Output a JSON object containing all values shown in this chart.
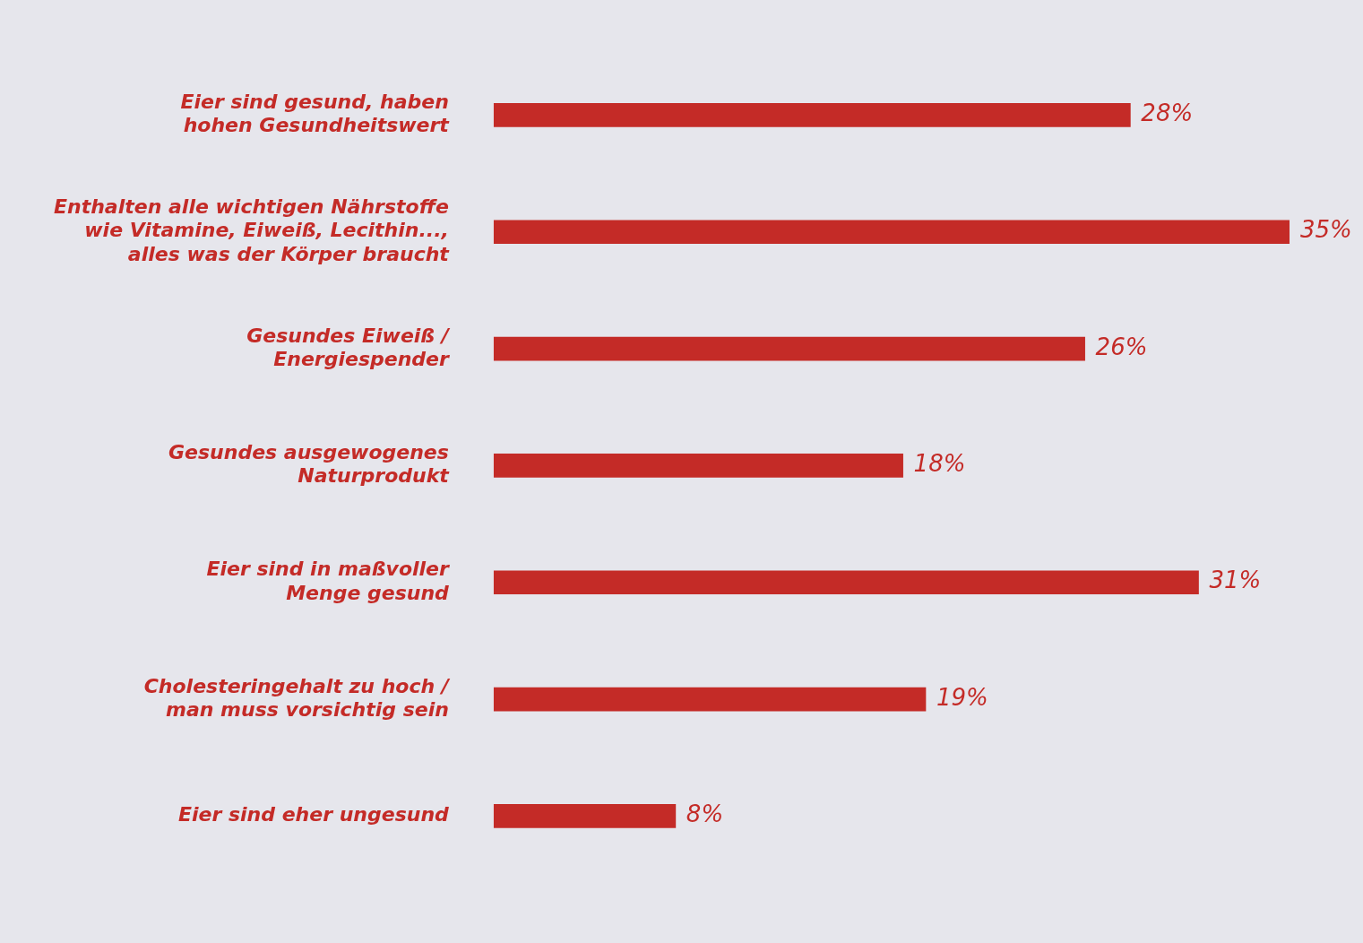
{
  "chart_data": {
    "type": "bar",
    "orientation": "horizontal",
    "categories": [
      "Eier sind gesund, haben\nhohen Gesundheitswert",
      "Enthalten alle wichtigen Nährstoffe\nwie Vitamine, Eiweiß, Lecithin...,\nalles was der Körper braucht",
      "Gesundes Eiweiß /\nEnergiespender",
      "Gesundes ausgewogenes\nNaturprodukt",
      "Eier sind in maßvoller\nMenge gesund",
      "Cholesteringehalt zu hoch /\nman muss vorsichtig sein",
      "Eier sind eher ungesund"
    ],
    "values": [
      28,
      35,
      26,
      18,
      31,
      19,
      8
    ],
    "value_labels": [
      "28%",
      "35%",
      "26%",
      "18%",
      "31%",
      "19%",
      "8%"
    ],
    "color": "#c42b27",
    "grid": false,
    "legend": false,
    "tick_labels": "y"
  }
}
